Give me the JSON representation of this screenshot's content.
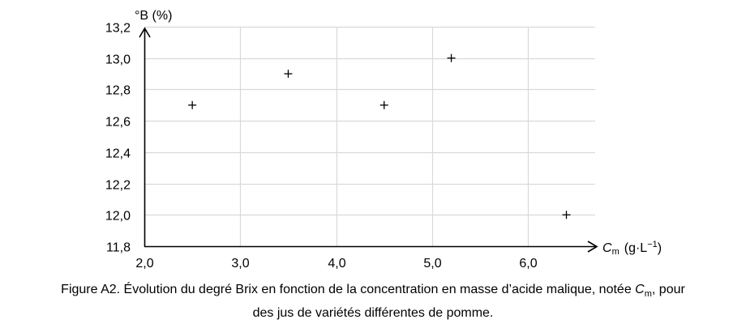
{
  "chart_data": {
    "type": "scatter",
    "marker": "+",
    "points": [
      {
        "x": 2.5,
        "y": 12.7
      },
      {
        "x": 3.5,
        "y": 12.9
      },
      {
        "x": 4.5,
        "y": 12.7
      },
      {
        "x": 5.2,
        "y": 13.0
      },
      {
        "x": 6.4,
        "y": 12.0
      }
    ],
    "x_ticks": [
      {
        "value": 2.0,
        "label": "2,0"
      },
      {
        "value": 3.0,
        "label": "3,0"
      },
      {
        "value": 4.0,
        "label": "4,0"
      },
      {
        "value": 5.0,
        "label": "5,0"
      },
      {
        "value": 6.0,
        "label": "6,0"
      }
    ],
    "y_ticks": [
      {
        "value": 11.8,
        "label": "11,8"
      },
      {
        "value": 12.0,
        "label": "12,0"
      },
      {
        "value": 12.2,
        "label": "12,2"
      },
      {
        "value": 12.4,
        "label": "12,4"
      },
      {
        "value": 12.6,
        "label": "12,6"
      },
      {
        "value": 12.8,
        "label": "12,8"
      },
      {
        "value": 13.0,
        "label": "13,0"
      },
      {
        "value": 13.2,
        "label": "13,2"
      }
    ],
    "xlim": [
      2.0,
      6.7
    ],
    "ylim": [
      11.8,
      13.2
    ],
    "xlabel": {
      "symbol": "C",
      "subscript": "m",
      "unit": "(g·L",
      "unit_exponent": "−1",
      "unit_close": ")"
    },
    "ylabel": "°B (%)",
    "grid": true,
    "colors": {
      "axis": "#000000",
      "grid": "#d9d9d9",
      "marker": "#000000",
      "text": "#000000"
    }
  },
  "caption": {
    "line1_before": "Figure A2. Évolution du degré Brix en fonction de la concentration en masse d’acide malique, notée ",
    "line1_symbol": "C",
    "line1_subscript": "m",
    "line1_after": ", pour",
    "line2": "des jus de variétés différentes de pomme."
  }
}
